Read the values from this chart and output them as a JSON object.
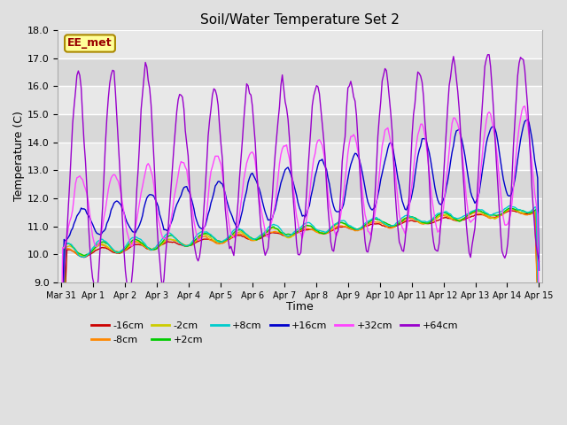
{
  "title": "Soil/Water Temperature Set 2",
  "xlabel": "Time",
  "ylabel": "Temperature (C)",
  "ylim": [
    9.0,
    18.0
  ],
  "yticks": [
    9.0,
    10.0,
    11.0,
    12.0,
    13.0,
    14.0,
    15.0,
    16.0,
    17.0,
    18.0
  ],
  "xtick_labels": [
    "Mar 31",
    "Apr 1",
    "Apr 2",
    "Apr 3",
    "Apr 4",
    "Apr 5",
    "Apr 6",
    "Apr 7",
    "Apr 8",
    "Apr 9",
    "Apr 10",
    "Apr 11",
    "Apr 12",
    "Apr 13",
    "Apr 14",
    "Apr 15"
  ],
  "series_colors": {
    "-16cm": "#cc0000",
    "-8cm": "#ff8800",
    "-2cm": "#cccc00",
    "+2cm": "#00cc00",
    "+8cm": "#00cccc",
    "+16cm": "#0000cc",
    "+32cm": "#ff44ff",
    "+64cm": "#9900cc"
  },
  "legend_label": "EE_met",
  "legend_bg": "#ffff99",
  "legend_border": "#aa8800",
  "figsize": [
    6.4,
    4.8
  ],
  "dpi": 100
}
